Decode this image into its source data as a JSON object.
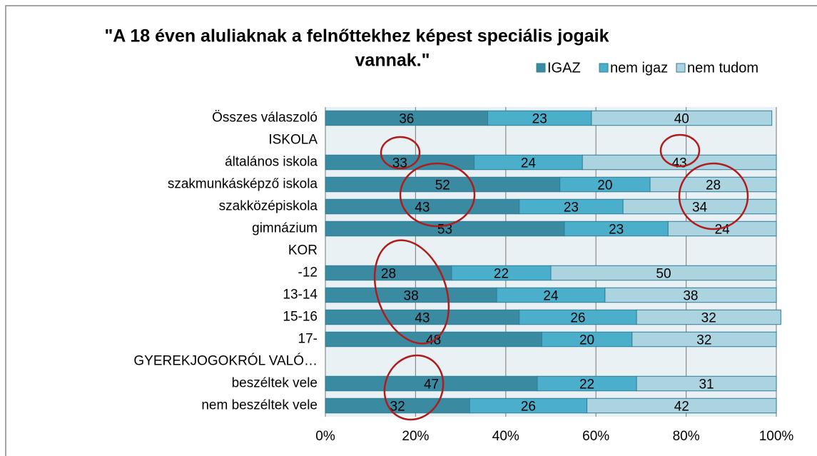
{
  "chart_data": {
    "type": "stacked_bar_horizontal",
    "title": [
      "\"A 18 éven aluliaknak a felnőttekhez képest speciális jogaik",
      "vannak.\""
    ],
    "categories": [
      "Összes válaszoló",
      "ISKOLA",
      "általános iskola",
      "szakmunkásképző iskola",
      "szakközépiskola",
      "gimnázium",
      "KOR",
      "-12",
      "13-14",
      "15-16",
      "17-",
      "GYEREKJOGOKRÓL VALÓ…",
      "beszéltek vele",
      "nem beszéltek vele"
    ],
    "series": [
      {
        "name": "IGAZ",
        "color": "#3a8aa1",
        "values": [
          36,
          null,
          33,
          52,
          43,
          53,
          null,
          28,
          38,
          43,
          48,
          null,
          47,
          32
        ]
      },
      {
        "name": "nem igaz",
        "color": "#4bafcc",
        "values": [
          23,
          null,
          24,
          20,
          23,
          23,
          null,
          22,
          24,
          26,
          20,
          null,
          22,
          26
        ]
      },
      {
        "name": "nem tudom",
        "color": "#abd3e0",
        "values": [
          40,
          null,
          43,
          28,
          34,
          24,
          null,
          50,
          38,
          32,
          32,
          null,
          31,
          42
        ]
      }
    ],
    "xlim": [
      0,
      100
    ],
    "xticks": [
      {
        "value": 0,
        "label": "0%"
      },
      {
        "value": 20,
        "label": "20%"
      },
      {
        "value": 40,
        "label": "40%"
      },
      {
        "value": 60,
        "label": "60%"
      },
      {
        "value": 80,
        "label": "80%"
      },
      {
        "value": 100,
        "label": "100%"
      }
    ],
    "grid": true,
    "legend": "top-right"
  }
}
